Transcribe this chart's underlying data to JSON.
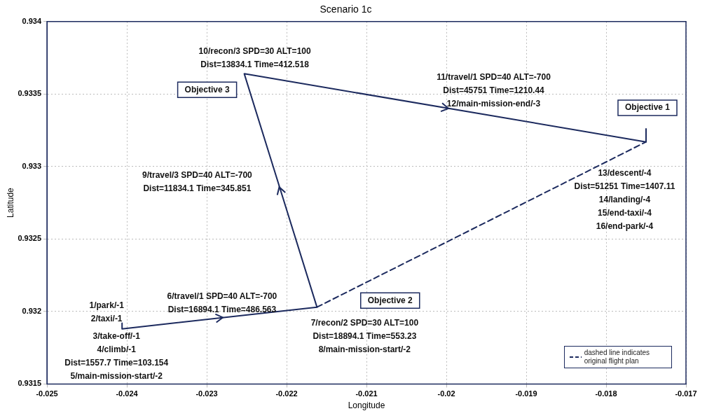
{
  "chart_data": {
    "type": "line",
    "title": "Scenario 1c",
    "xlabel": "Longitude",
    "ylabel": "Latitude",
    "series": [
      {
        "color": "#1c2a5e",
        "line_style": "solid",
        "x": [
          -0.02406,
          -0.02406,
          -0.02162,
          -0.02253,
          -0.0175,
          -0.0175
        ],
        "values": [
          0.93192,
          0.93188,
          0.93203,
          0.93364,
          0.93317,
          0.93326
        ]
      },
      {
        "name": "dashed line indicates original flight plan",
        "color": "#1c2a5e",
        "line_style": "dashed",
        "x": [
          -0.02162,
          -0.0175
        ],
        "values": [
          0.93203,
          0.93317
        ]
      }
    ],
    "xlim": [
      -0.025,
      -0.017
    ],
    "xticks": [
      -0.025,
      -0.024,
      -0.023,
      -0.022,
      -0.021,
      -0.02,
      -0.019,
      -0.018,
      -0.017
    ],
    "ylim": [
      0.9315,
      0.934
    ],
    "yticks": [
      0.9315,
      0.932,
      0.9325,
      0.933,
      0.9335,
      0.934
    ],
    "grid": true,
    "legend": "bottom right",
    "marker": "none",
    "annotations": [
      {
        "text": "1/park/-1\n2/taxi/-1",
        "x": -0.02406,
        "y": 0.93192
      },
      {
        "text": "3/take-off/-1\n4/climb/-1\nDist=1557.7 Time=103.154\n5/main-mission-start/-2",
        "x": -0.02406,
        "y": 0.93188
      },
      "6/travel/1 SPD=40 ALT=-700\nDist=16894.1 Time=486.563",
      {
        "text": "7/recon/2 SPD=30 ALT=100\nDist=18894.1 Time=553.23\n8/main-mission-start/-2",
        "x": -0.02162,
        "y": 0.93203
      },
      "9/travel/3 SPD=40 ALT=-700\nDist=11834.1 Time=345.851",
      {
        "text": "10/recon/3 SPD=30 ALT=100\nDist=13834.1 Time=412.518",
        "x": -0.02253,
        "y": 0.93364
      },
      "11/travel/1 SPD=40 ALT=-700\nDist=45751 Time=1210.44\n12/main-mission-end/-3",
      "13/descent/-4\nDist=51251 Time=1407.11\n14/landing/-4\n15/end-taxi/-4\n16/end-park/-4",
      {
        "text": "Objective 3",
        "x": -0.02253,
        "y": 0.93364
      },
      {
        "text": "Objective 1",
        "x": -0.0175,
        "y": 0.93326
      },
      "Objective 2"
    ]
  }
}
